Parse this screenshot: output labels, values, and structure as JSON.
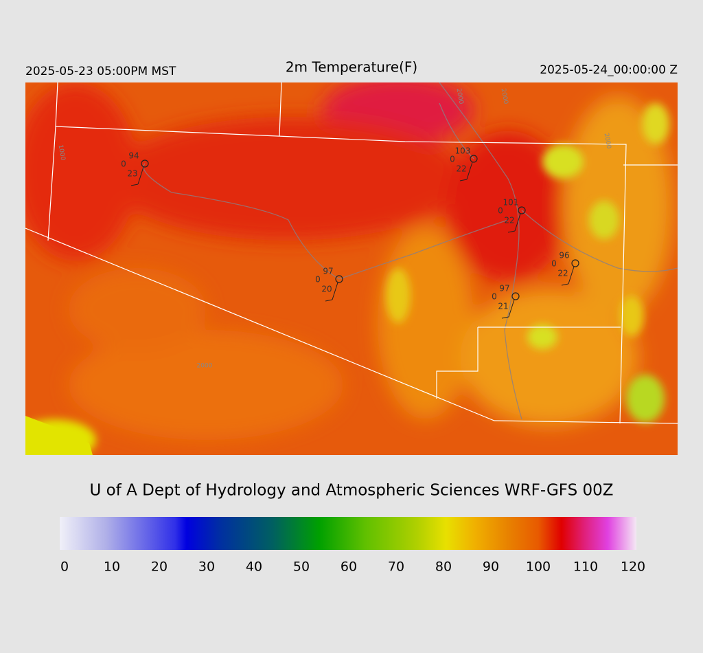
{
  "header": {
    "left": "2025-05-23 05:00PM MST",
    "title": "2m Temperature(F)",
    "right": "2025-05-24_00:00:00 Z"
  },
  "stations": [
    {
      "temperature": 94,
      "value": 0,
      "wind": 23
    },
    {
      "temperature": 103,
      "value": 0,
      "wind": 22
    },
    {
      "temperature": 101,
      "value": 0,
      "wind": 22
    },
    {
      "temperature": 96,
      "value": 0,
      "wind": 22
    },
    {
      "temperature": 97,
      "value": 0,
      "wind": 20
    },
    {
      "temperature": 97,
      "value": 0,
      "wind": 21
    }
  ],
  "contour_labels": [
    "2000",
    "2000",
    "1000",
    "2000",
    "2000"
  ],
  "credit": "U of A Dept of Hydrology and Atmospheric Sciences WRF-GFS 00Z",
  "colorbar": {
    "ticks": [
      0,
      10,
      20,
      30,
      40,
      50,
      60,
      70,
      80,
      90,
      100,
      110,
      120
    ]
  }
}
